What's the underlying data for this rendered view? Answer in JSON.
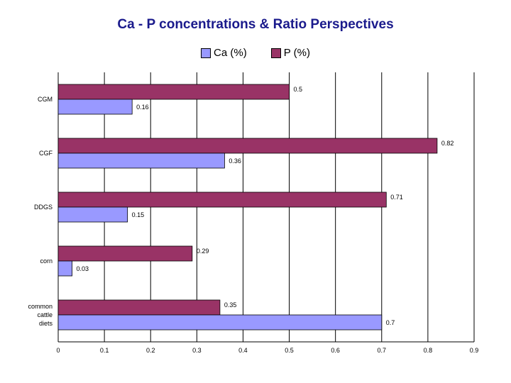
{
  "chart_data": {
    "type": "bar",
    "orientation": "horizontal",
    "title": "Ca - P concentrations & Ratio Perspectives",
    "categories": [
      "CGM",
      "CGF",
      "DDGS",
      "corn",
      "common cattle diets"
    ],
    "category_lines": [
      [
        "CGM"
      ],
      [
        "CGF"
      ],
      [
        "DDGS"
      ],
      [
        "corn"
      ],
      [
        "common",
        "cattle",
        "diets"
      ]
    ],
    "series": [
      {
        "name": "Ca (%)",
        "color": "#9999ff",
        "values": [
          0.16,
          0.36,
          0.15,
          0.03,
          0.7
        ],
        "labels": [
          "0.16",
          "0.36",
          "0.15",
          "0.03",
          "0.7"
        ]
      },
      {
        "name": "P (%)",
        "color": "#993366",
        "values": [
          0.5,
          0.82,
          0.71,
          0.29,
          0.35
        ],
        "labels": [
          "0.5",
          "0.82",
          "0.71",
          "0.29",
          "0.35"
        ]
      }
    ],
    "xlim": [
      0,
      0.9
    ],
    "xticks": [
      "0",
      "0.1",
      "0.2",
      "0.3",
      "0.4",
      "0.5",
      "0.6",
      "0.7",
      "0.8",
      "0.9"
    ],
    "grid": "vertical",
    "legend_position": "top-center"
  }
}
